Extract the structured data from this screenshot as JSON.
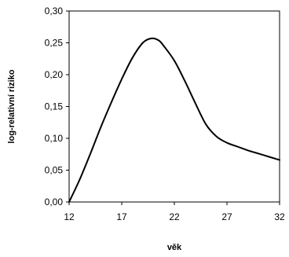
{
  "chart_data": {
    "type": "line",
    "title": "",
    "xlabel": "věk",
    "ylabel": "log-relativní riziko",
    "xlim": [
      12,
      32
    ],
    "ylim": [
      0,
      0.3
    ],
    "x_ticks": [
      12,
      17,
      22,
      27,
      32
    ],
    "x_tick_labels": [
      "12",
      "17",
      "22",
      "27",
      "32"
    ],
    "y_ticks": [
      0,
      0.05,
      0.1,
      0.15,
      0.2,
      0.25,
      0.3
    ],
    "y_tick_labels": [
      "0,00",
      "0,05",
      "0,10",
      "0,15",
      "0,20",
      "0,25",
      "0,30"
    ],
    "grid": false,
    "legend": "none",
    "line_color": "#000000",
    "series": [
      {
        "x": [
          12,
          13,
          14,
          15,
          16,
          17,
          18,
          19,
          19.8,
          20.5,
          21,
          22,
          23,
          24,
          25,
          26,
          27,
          28,
          29,
          30,
          31,
          32
        ],
        "y": [
          0.0,
          0.035,
          0.075,
          0.117,
          0.156,
          0.193,
          0.226,
          0.25,
          0.257,
          0.254,
          0.245,
          0.222,
          0.19,
          0.155,
          0.122,
          0.103,
          0.093,
          0.087,
          0.081,
          0.076,
          0.071,
          0.066
        ]
      }
    ]
  }
}
